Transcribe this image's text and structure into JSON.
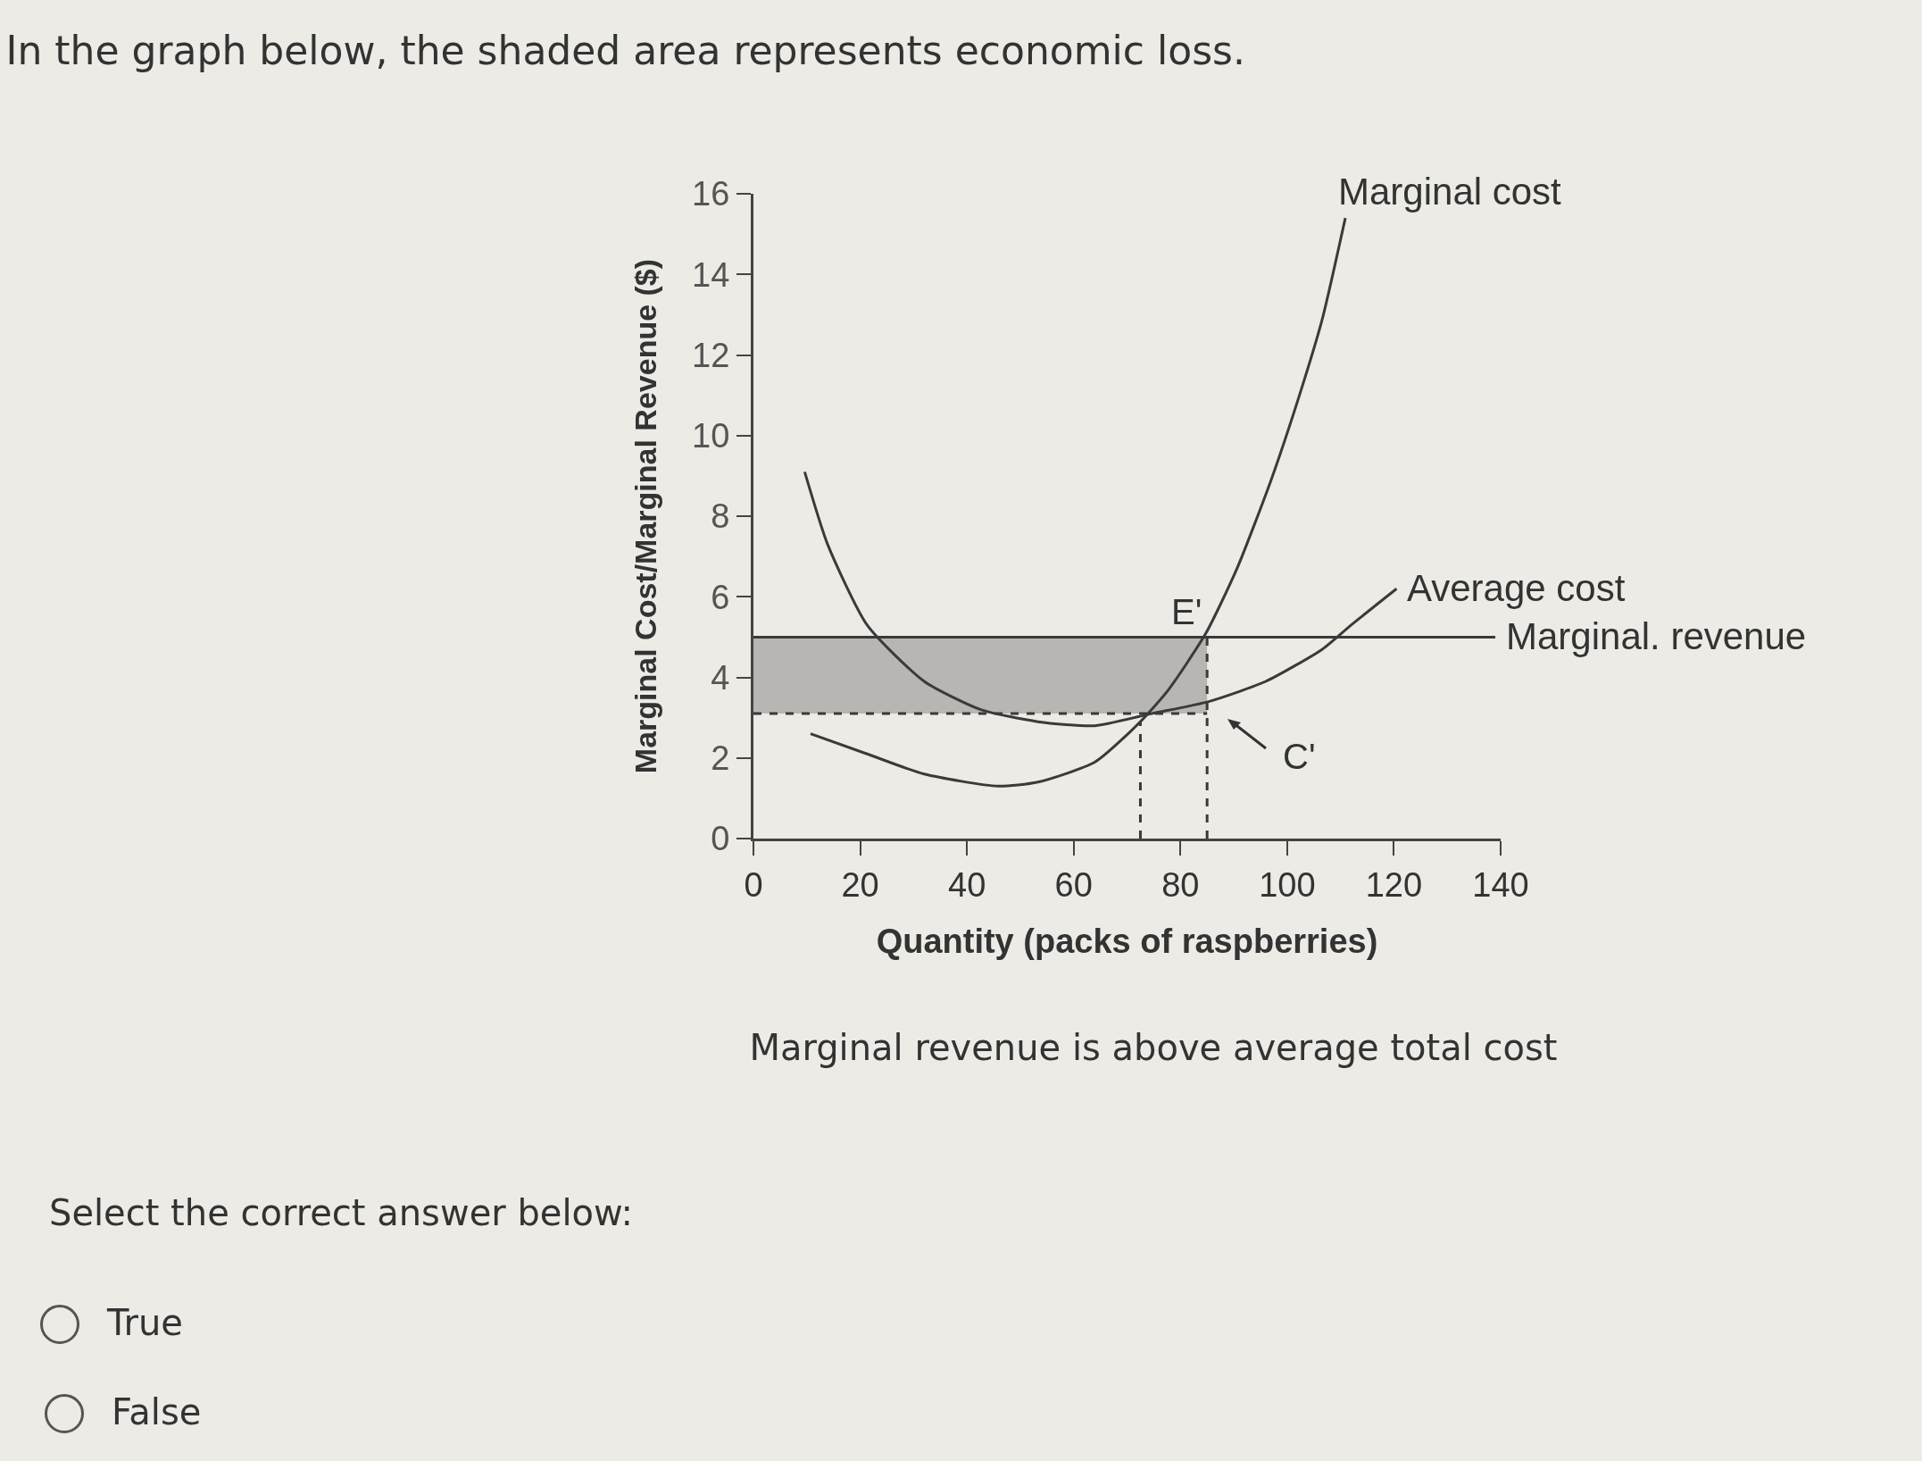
{
  "chart_data": {
    "type": "line",
    "title": "In the graph below, the shaded area represents economic loss.",
    "xlabel": "Quantity (packs of raspberries)",
    "ylabel": "Marginal Cost/Marginal Revenue ($)",
    "xlim": [
      0,
      140
    ],
    "xticks": [
      0,
      20,
      40,
      60,
      80,
      100,
      120,
      140
    ],
    "ylim": [
      0,
      16
    ],
    "yticks": [
      0,
      2,
      4,
      6,
      8,
      10,
      12,
      14,
      16
    ],
    "grid": false,
    "legend": false,
    "series": [
      {
        "line_style": "dashed",
        "color": "#3a3a3a",
        "x": [
          0,
          85
        ],
        "values": [
          3.1,
          3.1
        ],
        "lower": [
          3.1,
          3.1
        ],
        "upper": [
          5,
          5
        ]
      },
      {
        "line_style": "dashed",
        "color": "#3a3a3a",
        "x": [
          72.5,
          72.5
        ],
        "values": [
          0,
          2.9
        ]
      },
      {
        "line_style": "dashed",
        "color": "#3a3a3a",
        "x": [
          85,
          85
        ],
        "values": [
          0,
          5
        ]
      },
      {
        "name": "Marginal cost",
        "color": "#3a3a3a",
        "x": [
          10.7,
          21.3,
          32,
          45.8,
          53.3,
          64,
          72.5,
          77.8,
          84.8,
          90.6,
          97,
          102.3,
          106.6,
          110.9
        ],
        "values": [
          2.6,
          2.1,
          1.6,
          1.3,
          1.4,
          1.9,
          2.9,
          3.7,
          5.1,
          6.7,
          8.9,
          11,
          12.9,
          15.4
        ]
      },
      {
        "name": "Average cost",
        "color": "#3a3a3a",
        "x": [
          9.6,
          13.9,
          21.3,
          32,
          42.6,
          53.3,
          64,
          74.6,
          85.3,
          96,
          106.6,
          112,
          120.5
        ],
        "values": [
          9.1,
          7.3,
          5.3,
          3.9,
          3.2,
          2.9,
          2.8,
          3.1,
          3.4,
          3.9,
          4.7,
          5.3,
          6.2
        ]
      },
      {
        "name": "Marginal. revenue",
        "color": "#3a3a3a",
        "x": [
          0,
          139
        ],
        "values": [
          5,
          5
        ]
      }
    ],
    "annotations": [
      {
        "text": "E'",
        "x": 85,
        "y": 5
      },
      "C'",
      "Marginal revenue is above average total cost",
      "Select the correct answer below:",
      "True",
      "False"
    ]
  }
}
